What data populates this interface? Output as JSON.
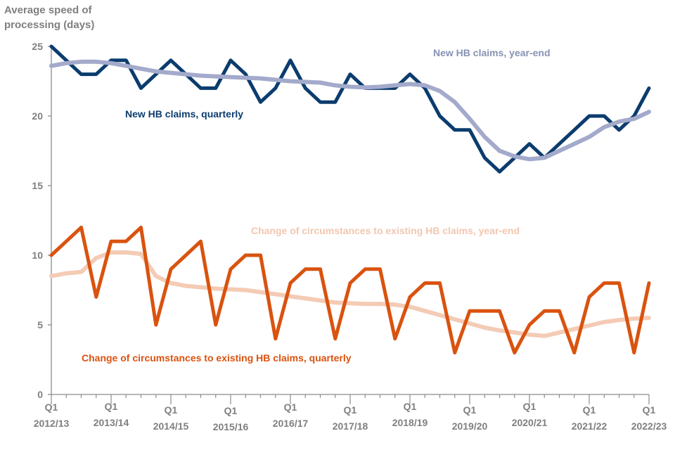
{
  "chart_data": {
    "type": "line",
    "title": "",
    "ylabel": "Average speed of\nprocessing (days)",
    "xlabel": "",
    "ylim": [
      0,
      25
    ],
    "yticks": [
      0,
      5,
      10,
      15,
      20,
      25
    ],
    "grid": false,
    "x_quarters": 41,
    "xtick_labels": [
      {
        "q": 0,
        "top": "Q1",
        "bottom": "2012/13"
      },
      {
        "q": 4,
        "top": "Q1",
        "bottom": "2013/14"
      },
      {
        "q": 8,
        "top": "Q1",
        "bottom": "2014/15"
      },
      {
        "q": 12,
        "top": "Q1",
        "bottom": "2015/16"
      },
      {
        "q": 16,
        "top": "Q1",
        "bottom": "2016/17"
      },
      {
        "q": 20,
        "top": "Q1",
        "bottom": "2017/18"
      },
      {
        "q": 24,
        "top": "Q1",
        "bottom": "2018/19"
      },
      {
        "q": 28,
        "top": "Q1",
        "bottom": "2019/20"
      },
      {
        "q": 32,
        "top": "Q1",
        "bottom": "2020/21"
      },
      {
        "q": 36,
        "top": "Q1",
        "bottom": "2021/22"
      },
      {
        "q": 40,
        "top": "Q1",
        "bottom": "2022/23"
      }
    ],
    "series": [
      {
        "name": "New HB claims, year-end",
        "color": "#a3aacb",
        "values": [
          23.6,
          23.8,
          23.9,
          23.9,
          23.8,
          23.6,
          23.4,
          23.2,
          23.1,
          23.0,
          22.9,
          22.85,
          22.8,
          22.75,
          22.7,
          22.6,
          22.5,
          22.45,
          22.4,
          22.2,
          22.1,
          22.05,
          22.1,
          22.2,
          22.3,
          22.2,
          21.8,
          21.0,
          19.8,
          18.5,
          17.5,
          17.1,
          16.9,
          17.0,
          17.5,
          18.0,
          18.5,
          19.2,
          19.6,
          19.8,
          20.3
        ],
        "label": {
          "text": "New HB claims, year-end",
          "color": "#8792b4"
        }
      },
      {
        "name": "New HB claims, quarterly",
        "color": "#0b3c6e",
        "values": [
          25,
          24,
          23,
          23,
          24,
          24,
          22,
          23,
          24,
          23,
          22,
          22,
          24,
          23,
          21,
          22,
          24,
          22,
          21,
          21,
          23,
          22,
          22,
          22,
          23,
          22,
          20,
          19,
          19,
          17,
          16,
          17,
          18,
          17,
          18,
          19,
          20,
          20,
          19,
          20,
          22
        ],
        "label": {
          "text": "New HB claims, quarterly",
          "color": "#0b3c6e"
        }
      },
      {
        "name": "Change of circumstances to existing HB claims, year-end",
        "color": "#f4cbb5",
        "values": [
          8.5,
          8.7,
          8.8,
          9.8,
          10.2,
          10.2,
          10.1,
          8.5,
          8.0,
          7.8,
          7.7,
          7.6,
          7.55,
          7.5,
          7.35,
          7.2,
          7.05,
          6.9,
          6.75,
          6.6,
          6.55,
          6.5,
          6.5,
          6.45,
          6.3,
          6.0,
          5.7,
          5.4,
          5.1,
          4.8,
          4.6,
          4.45,
          4.3,
          4.2,
          4.45,
          4.7,
          4.95,
          5.2,
          5.35,
          5.45,
          5.5
        ],
        "label": {
          "text": "Change of circumstances to existing HB claims, year-end",
          "color": "#f2c7b0"
        }
      },
      {
        "name": "Change of circumstances to existing HB claims, quarterly",
        "color": "#d9530f",
        "values": [
          10,
          11,
          12,
          7,
          11,
          11,
          12,
          5,
          9,
          10,
          11,
          5,
          9,
          10,
          10,
          4,
          8,
          9,
          9,
          4,
          8,
          9,
          9,
          4,
          7,
          8,
          8,
          3,
          6,
          6,
          6,
          3,
          5,
          6,
          6,
          3,
          7,
          8,
          8,
          3,
          8
        ],
        "label": {
          "text": "Change of circumstances to existing HB claims, quarterly",
          "color": "#d9530f"
        }
      }
    ]
  }
}
